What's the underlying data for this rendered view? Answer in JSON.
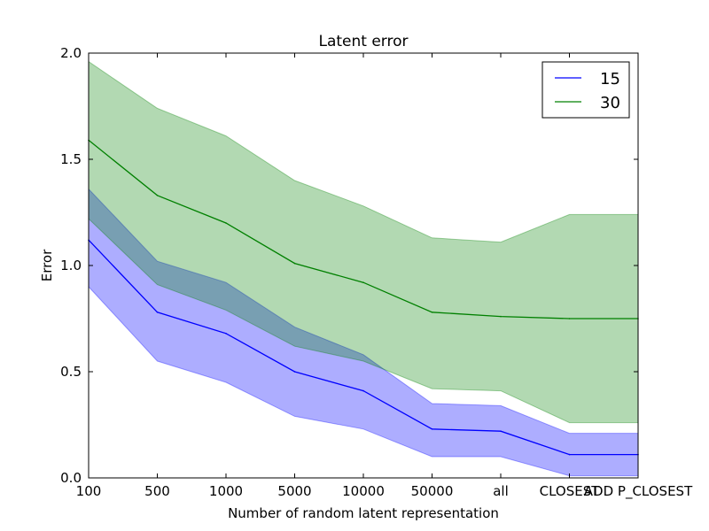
{
  "chart_data": {
    "type": "line",
    "title": "Latent error",
    "xlabel": "Number of random latent representation",
    "ylabel": "Error",
    "categories": [
      "100",
      "500",
      "1000",
      "5000",
      "10000",
      "50000",
      "all",
      "CLOSEST",
      "ADD P_CLOSEST"
    ],
    "ylim": [
      0.0,
      2.0
    ],
    "yticks": [
      "0.0",
      "0.5",
      "1.0",
      "1.5",
      "2.0"
    ],
    "grid": false,
    "legend": "top-right",
    "series": [
      {
        "name": "15",
        "color": "#0000ff",
        "values": [
          1.12,
          0.78,
          0.68,
          0.5,
          0.41,
          0.23,
          0.22,
          0.11,
          0.11
        ],
        "upper": [
          1.36,
          1.02,
          0.92,
          0.71,
          0.58,
          0.35,
          0.34,
          0.21,
          0.21
        ],
        "lower": [
          0.9,
          0.55,
          0.45,
          0.29,
          0.23,
          0.1,
          0.1,
          0.01,
          0.01
        ]
      },
      {
        "name": "30",
        "color": "#008000",
        "values": [
          1.59,
          1.33,
          1.2,
          1.01,
          0.92,
          0.78,
          0.76,
          0.75,
          0.75
        ],
        "upper": [
          1.96,
          1.74,
          1.61,
          1.4,
          1.28,
          1.13,
          1.11,
          1.24,
          1.24
        ],
        "lower": [
          1.22,
          0.91,
          0.79,
          0.62,
          0.55,
          0.42,
          0.41,
          0.26,
          0.26
        ]
      }
    ]
  }
}
